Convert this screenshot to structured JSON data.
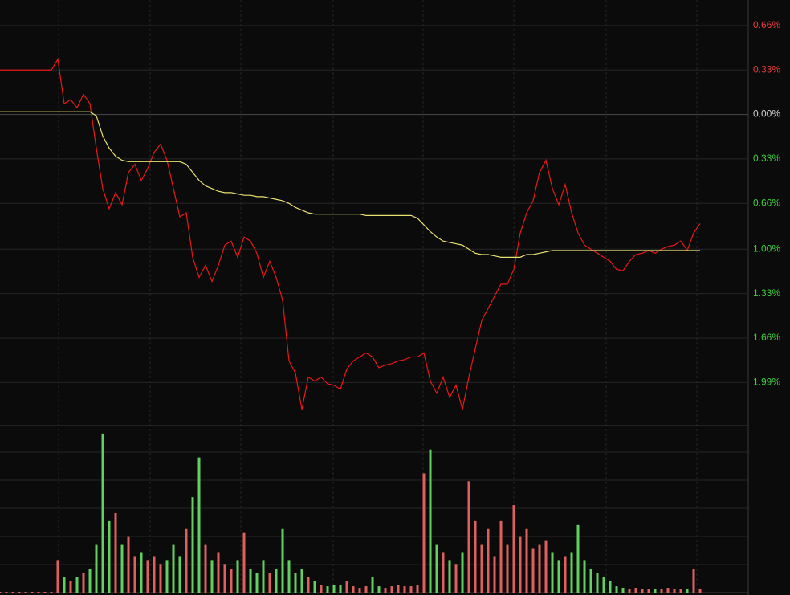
{
  "chart_data": [
    {
      "type": "line",
      "xlim": [
        0,
        116.5
      ],
      "ylim": [
        -2.31,
        0.85
      ],
      "yticks": [
        {
          "value": 0.66,
          "label": "0.66%"
        },
        {
          "value": 0.33,
          "label": "0.33%"
        },
        {
          "value": 0,
          "label": "0.00%"
        },
        {
          "value": -0.33,
          "label": "0.33%"
        },
        {
          "value": -0.66,
          "label": "0.66%"
        },
        {
          "value": -1.0,
          "label": "1.00%"
        },
        {
          "value": -1.33,
          "label": "1.33%"
        },
        {
          "value": -1.66,
          "label": "1.66%"
        },
        {
          "value": -1.99,
          "label": "1.99%"
        }
      ],
      "grid": true,
      "up_color": "#e83a3a",
      "down_color": "#3ccf3c",
      "flat_color": "#cfcfcf",
      "series": [
        {
          "color": "#e81818",
          "values": [
            0.33,
            0.33,
            0.33,
            0.33,
            0.33,
            0.33,
            0.33,
            0.33,
            0.33,
            0.41,
            0.08,
            0.11,
            0.05,
            0.15,
            0.08,
            -0.25,
            -0.55,
            -0.7,
            -0.58,
            -0.67,
            -0.43,
            -0.37,
            -0.49,
            -0.4,
            -0.28,
            -0.22,
            -0.34,
            -0.55,
            -0.76,
            -0.73,
            -1.06,
            -1.21,
            -1.12,
            -1.24,
            -1.12,
            -0.97,
            -0.94,
            -1.06,
            -0.91,
            -0.94,
            -1.03,
            -1.21,
            -1.09,
            -1.21,
            -1.38,
            -1.83,
            -1.92,
            -2.19,
            -1.95,
            -1.98,
            -1.95,
            -2.0,
            -2.01,
            -2.04,
            -1.89,
            -1.83,
            -1.8,
            -1.77,
            -1.8,
            -1.88,
            -1.86,
            -1.85,
            -1.83,
            -1.82,
            -1.8,
            -1.8,
            -1.77,
            -1.98,
            -2.07,
            -1.95,
            -2.1,
            -2.01,
            -2.19,
            -1.95,
            -1.74,
            -1.53,
            -1.44,
            -1.35,
            -1.26,
            -1.26,
            -1.15,
            -0.88,
            -0.73,
            -0.64,
            -0.43,
            -0.34,
            -0.55,
            -0.67,
            -0.52,
            -0.73,
            -0.88,
            -0.97,
            -1.0,
            -1.03,
            -1.06,
            -1.09,
            -1.15,
            -1.16,
            -1.09,
            -1.04,
            -1.03,
            -1.01,
            -1.03,
            -1.0,
            -0.98,
            -0.97,
            -0.94,
            -1.01,
            -0.88,
            -0.81
          ]
        },
        {
          "color": "#e8e070",
          "values": [
            0.02,
            0.02,
            0.02,
            0.02,
            0.02,
            0.02,
            0.02,
            0.02,
            0.02,
            0.02,
            0.02,
            0.02,
            0.02,
            0.02,
            0.02,
            -0.01,
            -0.16,
            -0.25,
            -0.31,
            -0.34,
            -0.35,
            -0.35,
            -0.35,
            -0.35,
            -0.35,
            -0.35,
            -0.35,
            -0.35,
            -0.35,
            -0.37,
            -0.43,
            -0.49,
            -0.53,
            -0.55,
            -0.57,
            -0.58,
            -0.58,
            -0.59,
            -0.6,
            -0.6,
            -0.61,
            -0.61,
            -0.62,
            -0.63,
            -0.64,
            -0.66,
            -0.69,
            -0.71,
            -0.73,
            -0.74,
            -0.74,
            -0.74,
            -0.74,
            -0.74,
            -0.74,
            -0.74,
            -0.74,
            -0.75,
            -0.75,
            -0.75,
            -0.75,
            -0.75,
            -0.75,
            -0.75,
            -0.75,
            -0.77,
            -0.82,
            -0.87,
            -0.91,
            -0.94,
            -0.95,
            -0.96,
            -0.97,
            -1.0,
            -1.03,
            -1.04,
            -1.04,
            -1.05,
            -1.06,
            -1.06,
            -1.06,
            -1.06,
            -1.04,
            -1.04,
            -1.03,
            -1.02,
            -1.01,
            -1.01,
            -1.01,
            -1.01,
            -1.01,
            -1.01,
            -1.01,
            -1.01,
            -1.01,
            -1.01,
            -1.01,
            -1.01,
            -1.01,
            -1.01,
            -1.01,
            -1.01,
            -1.01,
            -1.01,
            -1.01,
            -1.01,
            -1.01,
            -1.01,
            -1.01,
            -1.01
          ]
        }
      ]
    },
    {
      "type": "bar",
      "xlim": [
        0,
        116.5
      ],
      "ylim": [
        0,
        210
      ],
      "up_color": "#e06060",
      "down_color": "#60d060",
      "values": [
        1,
        1,
        1,
        1,
        1,
        1,
        1,
        1,
        1,
        40,
        20,
        15,
        20,
        25,
        30,
        60,
        200,
        90,
        100,
        60,
        70,
        45,
        50,
        40,
        45,
        35,
        40,
        60,
        45,
        80,
        120,
        170,
        60,
        40,
        50,
        35,
        30,
        40,
        75,
        30,
        25,
        40,
        25,
        30,
        80,
        40,
        25,
        30,
        20,
        15,
        10,
        8,
        10,
        10,
        15,
        8,
        6,
        8,
        20,
        8,
        6,
        8,
        10,
        8,
        8,
        10,
        150,
        180,
        60,
        50,
        40,
        35,
        50,
        140,
        90,
        60,
        80,
        45,
        90,
        60,
        110,
        70,
        80,
        55,
        60,
        65,
        50,
        40,
        45,
        50,
        85,
        40,
        30,
        25,
        20,
        15,
        8,
        6,
        5,
        6,
        5,
        4,
        5,
        4,
        6,
        5,
        4,
        5,
        30,
        5
      ]
    }
  ]
}
